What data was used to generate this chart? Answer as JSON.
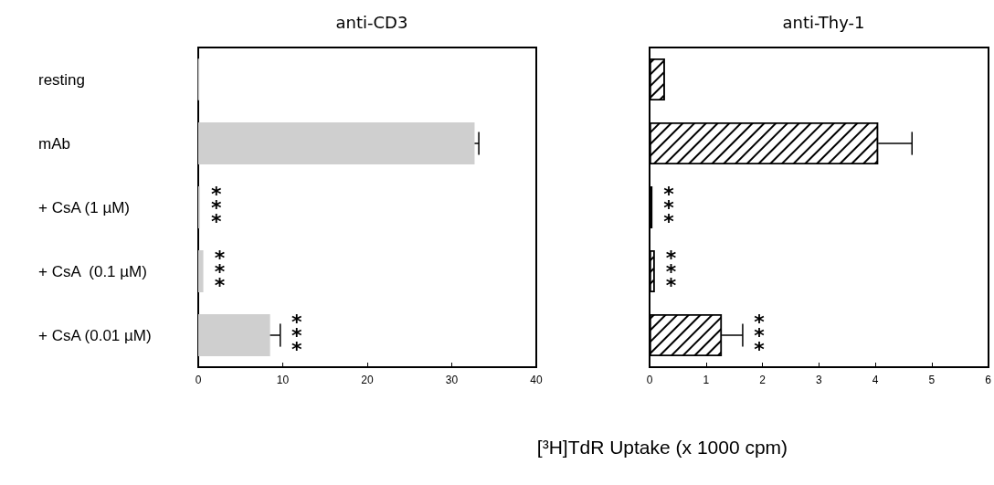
{
  "chart_data": [
    {
      "type": "bar",
      "orientation": "horizontal",
      "title": "anti-CD3",
      "categories": [
        "resting",
        "mAb",
        "+ CsA (1 µM)",
        "+ CsA  (0.1 µM)",
        "+ CsA (0.01 µM)"
      ],
      "series": [
        {
          "color": "#cfcfcf",
          "values": [
            0.1,
            32.7,
            0.2,
            0.6,
            8.5
          ],
          "errors": [
            null,
            0.5,
            null,
            null,
            1.2
          ]
        }
      ],
      "xlim": [
        0,
        40
      ],
      "xticks": [
        0,
        10,
        20,
        30,
        40
      ],
      "grid": false,
      "annotations": [
        {
          "text": "***",
          "x": 0.2,
          "y": "+ CsA (1 µM)"
        },
        {
          "text": "***",
          "x": 0.6,
          "y": "+ CsA  (0.1 µM)"
        },
        {
          "text": "***",
          "x": 8.5,
          "y": "+ CsA (0.01 µM)"
        }
      ]
    },
    {
      "type": "bar",
      "orientation": "horizontal",
      "title": "anti-Thy-1",
      "xlabel": "[³H]TdR Uptake (x 1000 cpm)",
      "categories": [
        "resting",
        "mAb",
        "+ CsA (1 µM)",
        "+ CsA  (0.1 µM)",
        "+ CsA (0.01 µM)"
      ],
      "series": [
        {
          "color": "#ffffff",
          "values": [
            0.27,
            4.05,
            0.05,
            0.09,
            1.28
          ],
          "errors": [
            null,
            0.6,
            null,
            null,
            0.37
          ]
        }
      ],
      "xlim": [
        0,
        6
      ],
      "xticks": [
        0,
        1,
        2,
        3,
        4,
        5,
        6
      ],
      "grid": false,
      "tick_labels": "x",
      "annotations": [
        {
          "text": "***",
          "x": 0.05,
          "y": "+ CsA (1 µM)"
        },
        {
          "text": "***",
          "x": 0.09,
          "y": "+ CsA  (0.1 µM)"
        },
        {
          "text": "***",
          "x": 1.28,
          "y": "+ CsA (0.01 µM)"
        }
      ]
    }
  ]
}
